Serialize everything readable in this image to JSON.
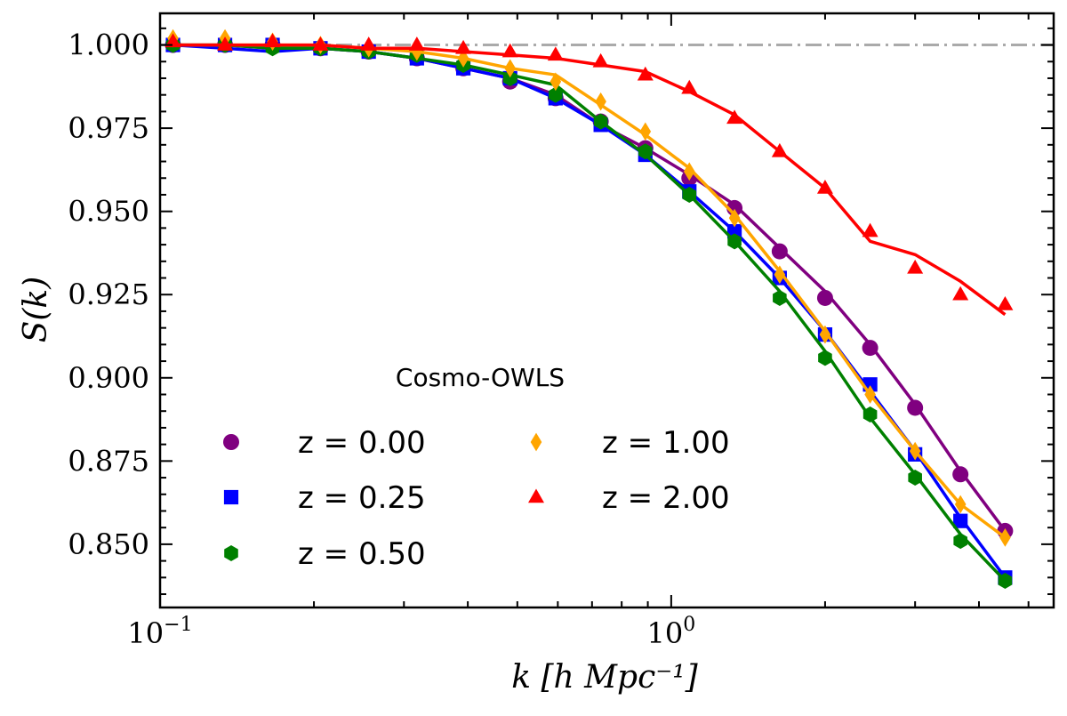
{
  "chart_data": {
    "type": "line",
    "xlabel": "k [h Mpc⁻¹]",
    "ylabel": "S(k)",
    "xscale": "log",
    "xlim": [
      0.1,
      5.6
    ],
    "ylim": [
      0.831,
      1.0095
    ],
    "reference_line": {
      "y": 1.0,
      "style": "dash-dot",
      "color": "#aaaaaa"
    },
    "y_ticks": [
      {
        "value": 0.85,
        "label": "0.850"
      },
      {
        "value": 0.875,
        "label": "0.875"
      },
      {
        "value": 0.9,
        "label": "0.900"
      },
      {
        "value": 0.925,
        "label": "0.925"
      },
      {
        "value": 0.95,
        "label": "0.950"
      },
      {
        "value": 0.975,
        "label": "0.975"
      },
      {
        "value": 1.0,
        "label": "1.000"
      }
    ],
    "x_major_ticks": [
      {
        "value": 0.1,
        "base": "10",
        "exp": "−1"
      },
      {
        "value": 1.0,
        "base": "10",
        "exp": "0"
      }
    ],
    "x_minor_ticks": [
      0.2,
      0.3,
      0.4,
      0.5,
      0.6,
      0.7,
      0.8,
      0.9,
      2,
      3,
      4,
      5
    ],
    "legend": {
      "title": "Cosmo-OWLS",
      "position": "lower-left",
      "columns": 2
    },
    "x": [
      0.106,
      0.134,
      0.166,
      0.206,
      0.256,
      0.318,
      0.392,
      0.484,
      0.594,
      0.728,
      0.89,
      1.085,
      1.33,
      1.63,
      2.0,
      2.45,
      3.0,
      3.68,
      4.5
    ],
    "series": [
      {
        "name": "z = 0.00",
        "color": "#800080",
        "marker": "circle",
        "line": [
          1.0,
          1.0,
          0.999,
          0.999,
          0.998,
          0.996,
          0.993,
          0.99,
          0.985,
          0.976,
          0.969,
          0.961,
          0.952,
          0.939,
          0.926,
          0.91,
          0.892,
          0.872,
          0.854
        ],
        "points": [
          1.0,
          1.0,
          1.0,
          0.999,
          0.998,
          0.996,
          0.993,
          0.989,
          0.984,
          0.977,
          0.969,
          0.96,
          0.951,
          0.938,
          0.924,
          0.909,
          0.891,
          0.871,
          0.854
        ]
      },
      {
        "name": "z = 0.25",
        "color": "#0000ff",
        "marker": "square",
        "line": [
          1.0,
          0.999,
          0.998,
          0.999,
          0.998,
          0.996,
          0.993,
          0.99,
          0.984,
          0.976,
          0.967,
          0.956,
          0.944,
          0.93,
          0.914,
          0.896,
          0.878,
          0.858,
          0.84
        ],
        "points": [
          1.0,
          1.0,
          1.0,
          0.999,
          0.998,
          0.996,
          0.993,
          0.99,
          0.984,
          0.976,
          0.967,
          0.956,
          0.944,
          0.93,
          0.913,
          0.898,
          0.877,
          0.857,
          0.84
        ]
      },
      {
        "name": "z = 0.50",
        "color": "#008000",
        "marker": "hexagon",
        "line": [
          1.0,
          1.0,
          0.999,
          0.999,
          0.998,
          0.996,
          0.994,
          0.991,
          0.988,
          0.977,
          0.967,
          0.955,
          0.941,
          0.926,
          0.908,
          0.888,
          0.871,
          0.853,
          0.839
        ],
        "points": [
          1.0,
          1.0,
          0.999,
          0.999,
          0.998,
          0.997,
          0.994,
          0.99,
          0.985,
          0.977,
          0.968,
          0.955,
          0.941,
          0.924,
          0.906,
          0.889,
          0.87,
          0.851,
          0.839
        ]
      },
      {
        "name": "z = 1.00",
        "color": "#ffa500",
        "marker": "diamond",
        "line": [
          1.0,
          1.0,
          1.0,
          1.0,
          0.999,
          0.998,
          0.996,
          0.993,
          0.991,
          0.982,
          0.973,
          0.963,
          0.949,
          0.932,
          0.914,
          0.895,
          0.878,
          0.862,
          0.852
        ],
        "points": [
          1.002,
          1.002,
          1.001,
          1.0,
          0.999,
          0.998,
          0.996,
          0.993,
          0.989,
          0.983,
          0.974,
          0.962,
          0.948,
          0.931,
          0.913,
          0.895,
          0.878,
          0.862,
          0.852
        ]
      },
      {
        "name": "z = 2.00",
        "color": "#ff0000",
        "marker": "triangle",
        "line": [
          1.0,
          1.0,
          1.0,
          1.0,
          0.999,
          0.999,
          0.998,
          0.997,
          0.996,
          0.994,
          0.992,
          0.986,
          0.979,
          0.968,
          0.957,
          0.941,
          0.937,
          0.929,
          0.919
        ],
        "points": [
          1.001,
          1.0,
          1.001,
          1.0,
          1.0,
          1.0,
          0.999,
          0.998,
          0.997,
          0.995,
          0.991,
          0.987,
          0.978,
          0.968,
          0.957,
          0.944,
          0.933,
          0.925,
          0.922
        ]
      }
    ]
  }
}
